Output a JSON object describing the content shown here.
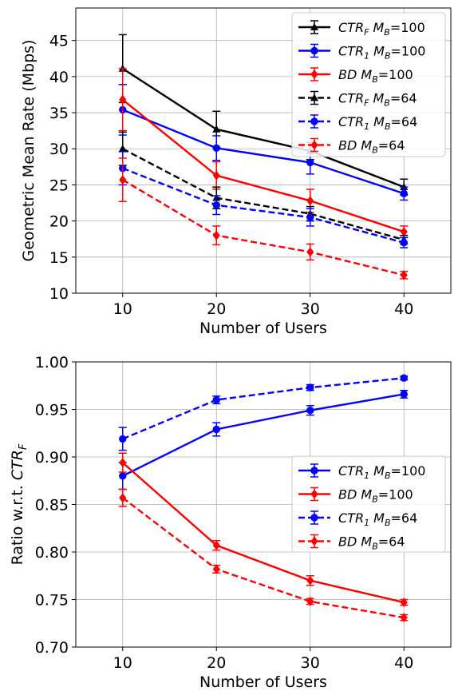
{
  "chart_data": [
    {
      "type": "line",
      "xlabel": "Number of Users",
      "ylabel": "Geometric Mean Rate (Mbps)",
      "x": [
        10,
        20,
        30,
        40
      ],
      "xlim": [
        5,
        45
      ],
      "ylim": [
        10,
        49.5
      ],
      "xticks": [
        "10",
        "20",
        "30",
        "40"
      ],
      "yticks": [
        "10",
        "15",
        "20",
        "25",
        "30",
        "35",
        "40",
        "45"
      ],
      "grid": true,
      "legend_position": "top-right",
      "series": [
        {
          "name": "CTR_F M_B=100",
          "legend": {
            "base": "CTR",
            "sub": "F",
            "mb": "100"
          },
          "color": "#000000",
          "dash": "solid",
          "marker": "triangle",
          "values": [
            41.1,
            32.7,
            29.7,
            24.7
          ],
          "err": [
            4.7,
            2.5,
            1.2,
            1.1
          ]
        },
        {
          "name": "CTR_1 M_B=100",
          "legend": {
            "base": "CTR",
            "sub": "1",
            "mb": "100"
          },
          "color": "#0000ff",
          "dash": "solid",
          "marker": "circle",
          "values": [
            35.4,
            30.1,
            28.1,
            23.8
          ],
          "err": [
            3.5,
            1.7,
            1.6,
            0.9
          ]
        },
        {
          "name": "BD M_B=100",
          "legend": {
            "base": "BD",
            "sub": "",
            "mb": "100"
          },
          "color": "#ff0000",
          "dash": "solid",
          "marker": "diamond",
          "values": [
            36.8,
            26.3,
            22.8,
            18.5
          ],
          "err": [
            4.3,
            1.9,
            1.6,
            0.8
          ]
        },
        {
          "name": "CTR_F M_B=64",
          "legend": {
            "base": "CTR",
            "sub": "F",
            "mb": "64"
          },
          "color": "#000000",
          "dash": "dashed",
          "marker": "triangle",
          "values": [
            30.0,
            23.2,
            21.0,
            17.4
          ],
          "err": [
            2.3,
            1.5,
            1.0,
            0.6
          ]
        },
        {
          "name": "CTR_1 M_B=64",
          "legend": {
            "base": "CTR",
            "sub": "1",
            "mb": "64"
          },
          "color": "#0000ff",
          "dash": "dashed",
          "marker": "circle",
          "values": [
            27.3,
            22.2,
            20.5,
            17.0
          ],
          "err": [
            2.3,
            1.3,
            1.2,
            0.7
          ]
        },
        {
          "name": "BD M_B=64",
          "legend": {
            "base": "BD",
            "sub": "",
            "mb": "64"
          },
          "color": "#ff0000",
          "dash": "dashed",
          "marker": "diamond",
          "values": [
            25.7,
            18.0,
            15.7,
            12.5
          ],
          "err": [
            3.0,
            1.3,
            1.1,
            0.5
          ]
        }
      ]
    },
    {
      "type": "line",
      "xlabel": "Number of Users",
      "ylabel": "Ratio w.r.t. CTR_F",
      "ylabel_parts": {
        "prefix": "Ratio w.r.t. ",
        "base": "CTR",
        "sub": "F"
      },
      "x": [
        10,
        20,
        30,
        40
      ],
      "xlim": [
        5,
        45
      ],
      "ylim": [
        0.7,
        1.0
      ],
      "xticks": [
        "10",
        "20",
        "30",
        "40"
      ],
      "yticks": [
        "0.70",
        "0.75",
        "0.80",
        "0.85",
        "0.90",
        "0.95",
        "1.00"
      ],
      "grid": true,
      "legend_position": "center-right",
      "series": [
        {
          "name": "CTR_1 M_B=100",
          "legend": {
            "base": "CTR",
            "sub": "1",
            "mb": "100"
          },
          "color": "#0000ff",
          "dash": "solid",
          "marker": "circle",
          "values": [
            0.88,
            0.929,
            0.949,
            0.966
          ],
          "err": [
            0.014,
            0.007,
            0.005,
            0.004
          ]
        },
        {
          "name": "BD M_B=100",
          "legend": {
            "base": "BD",
            "sub": "",
            "mb": "100"
          },
          "color": "#ff0000",
          "dash": "solid",
          "marker": "diamond",
          "values": [
            0.894,
            0.807,
            0.77,
            0.747
          ],
          "err": [
            0.01,
            0.005,
            0.005,
            0.003
          ]
        },
        {
          "name": "CTR_1 M_B=64",
          "legend": {
            "base": "CTR",
            "sub": "1",
            "mb": "64"
          },
          "color": "#0000ff",
          "dash": "dashed",
          "marker": "circle",
          "values": [
            0.919,
            0.96,
            0.973,
            0.983
          ],
          "err": [
            0.012,
            0.004,
            0.003,
            0.002
          ]
        },
        {
          "name": "BD M_B=64",
          "legend": {
            "base": "BD",
            "sub": "",
            "mb": "64"
          },
          "color": "#ff0000",
          "dash": "dashed",
          "marker": "diamond",
          "values": [
            0.857,
            0.782,
            0.748,
            0.731
          ],
          "err": [
            0.009,
            0.004,
            0.003,
            0.003
          ]
        }
      ]
    }
  ]
}
